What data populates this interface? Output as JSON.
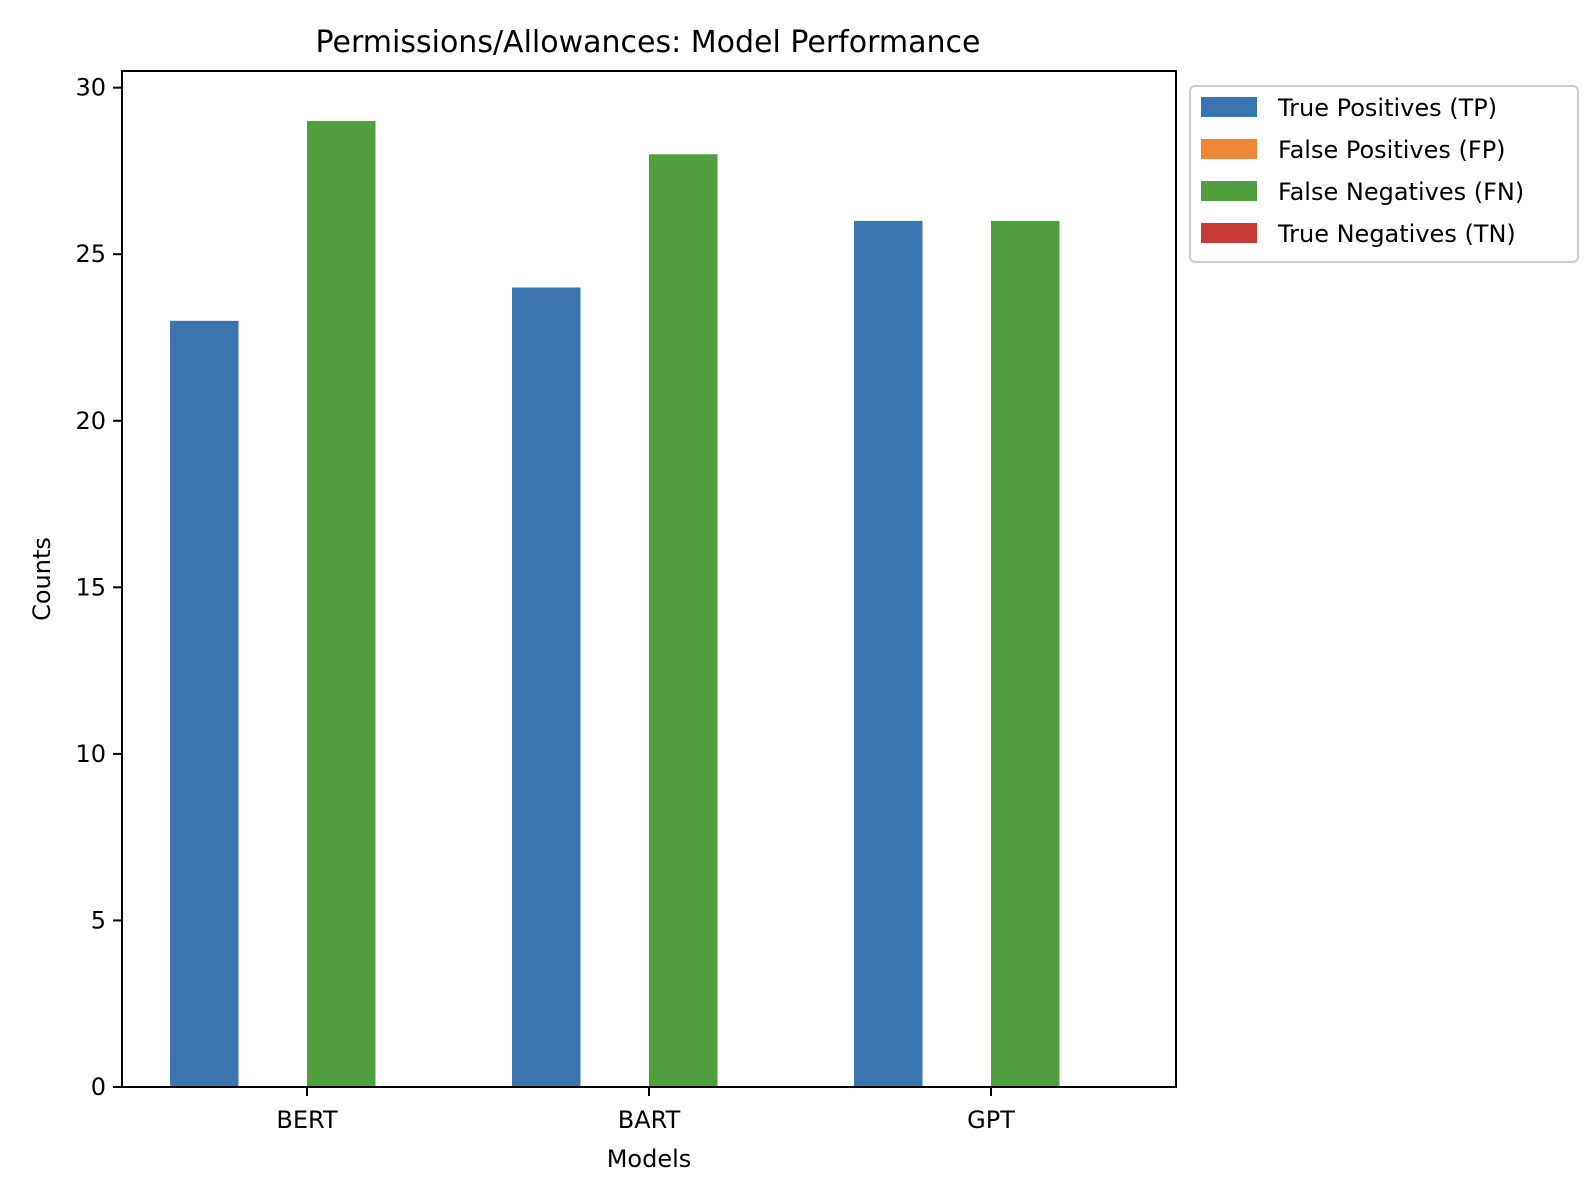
{
  "chart_data": {
    "type": "bar",
    "title": "Permissions/Allowances: Model Performance",
    "xlabel": "Models",
    "ylabel": "Counts",
    "categories": [
      "BERT",
      "BART",
      "GPT"
    ],
    "ylim": [
      0,
      30.5
    ],
    "yticks": [
      "0",
      "5",
      "10",
      "15",
      "20",
      "25",
      "30"
    ],
    "grid": false,
    "legend_position": "outside top-right",
    "series": [
      {
        "name": "True Positives (TP)",
        "color": "#3a75af",
        "values": [
          23,
          24,
          26
        ]
      },
      {
        "name": "False Positives (FP)",
        "color": "#ef8636",
        "values": [
          0,
          0,
          0
        ]
      },
      {
        "name": "False Negatives (FN)",
        "color": "#519e3e",
        "values": [
          29,
          28,
          26
        ]
      },
      {
        "name": "True Negatives (TN)",
        "color": "#c53a32",
        "values": [
          0,
          0,
          0
        ]
      }
    ]
  }
}
